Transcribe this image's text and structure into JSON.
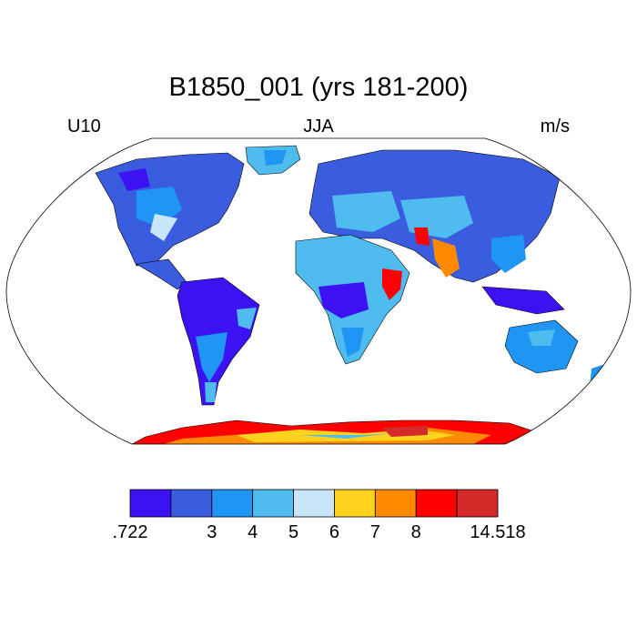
{
  "title": "B1850_001 (yrs 181-200)",
  "left_string": "U10",
  "center_string": "JJA",
  "right_string": "m/s",
  "colorbar": {
    "colors": [
      "#3d12f2",
      "#3a5ddf",
      "#1f96f4",
      "#4fbcf0",
      "#c8e6f8",
      "#ffd21e",
      "#ff8a00",
      "#ff0000",
      "#d42a2a"
    ],
    "labels": [
      ".722",
      "3",
      "4",
      "5",
      "6",
      "7",
      "8",
      "14.518"
    ],
    "label_positions": [
      0,
      2,
      3,
      4,
      5,
      6,
      7,
      9
    ]
  },
  "chart_data": {
    "type": "heatmap",
    "title": "B1850_001 (yrs 181-200)",
    "variable": "U10",
    "season": "JJA",
    "units": "m/s",
    "projection": "Robinson",
    "range": [
      0.722,
      14.518
    ],
    "levels": [
      3,
      4,
      5,
      6,
      7,
      8
    ]
  }
}
